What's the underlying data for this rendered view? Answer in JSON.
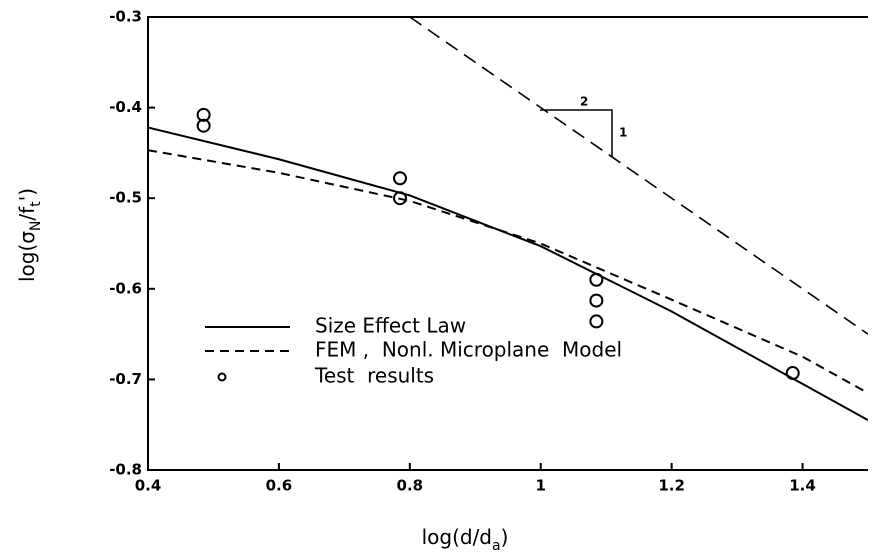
{
  "chart_data": {
    "type": "line",
    "x_label": [
      "log(d/d",
      "a",
      ")"
    ],
    "y_label": [
      "log(σ",
      "N",
      "/f",
      "t",
      "')"
    ],
    "xlim": [
      0.4,
      1.5
    ],
    "ylim": [
      -0.8,
      -0.3
    ],
    "xticks": [
      0.4,
      0.6,
      0.8,
      1.0,
      1.2,
      1.4
    ],
    "yticks": [
      -0.8,
      -0.7,
      -0.6,
      -0.5,
      -0.4,
      -0.3
    ],
    "series": [
      {
        "name": "Size Effect Law",
        "color": "#000",
        "style": "solid",
        "x": [
          0.4,
          0.6,
          0.8,
          1.0,
          1.2,
          1.4,
          1.5
        ],
        "values": [
          -0.422,
          -0.457,
          -0.497,
          -0.553,
          -0.625,
          -0.705,
          -0.745
        ]
      },
      {
        "name": "FEM ,  Nonl. Microplane  Model",
        "color": "#000",
        "style": "dashed",
        "x": [
          0.4,
          0.6,
          0.8,
          1.0,
          1.2,
          1.4,
          1.5
        ],
        "values": [
          -0.447,
          -0.472,
          -0.503,
          -0.55,
          -0.612,
          -0.675,
          -0.715
        ]
      },
      {
        "name": "Test  results",
        "color": "#000",
        "style": "marker",
        "x": [
          0.485,
          0.485,
          0.785,
          0.785,
          1.085,
          1.085,
          1.085,
          1.385
        ],
        "values": [
          -0.408,
          -0.42,
          -0.478,
          -0.5,
          -0.59,
          -0.613,
          -0.636,
          -0.693
        ]
      }
    ],
    "slope_line": {
      "x": [
        0.8,
        1.5
      ],
      "values": [
        -0.3,
        -0.65
      ]
    },
    "annotations": [
      "2",
      "1"
    ]
  }
}
